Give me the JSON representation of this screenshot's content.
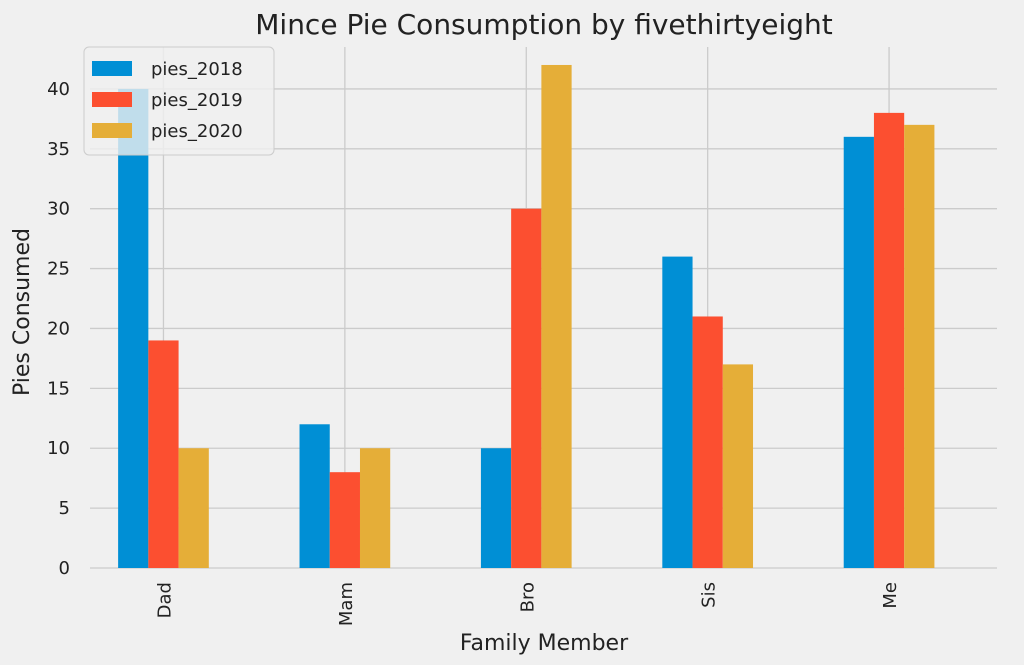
{
  "chart_data": {
    "type": "bar",
    "title": "Mince Pie Consumption by fivethirtyeight",
    "xlabel": "Family Member",
    "ylabel": "Pies Consumed",
    "categories": [
      "Dad",
      "Mam",
      "Bro",
      "Sis",
      "Me"
    ],
    "series": [
      {
        "name": "pies_2018",
        "color": "#008fd5",
        "values": [
          40,
          12,
          10,
          26,
          36
        ]
      },
      {
        "name": "pies_2019",
        "color": "#fc4f30",
        "values": [
          19,
          8,
          30,
          21,
          38
        ]
      },
      {
        "name": "pies_2020",
        "color": "#e5ae38",
        "values": [
          10,
          10,
          42,
          17,
          37
        ]
      }
    ],
    "ylim": [
      0,
      43.5
    ],
    "yticks": [
      0,
      5,
      10,
      15,
      20,
      25,
      30,
      35,
      40
    ],
    "grid": true,
    "legend_position": "top-left",
    "style": "fivethirtyeight",
    "background_color": "#f0f0f0"
  }
}
